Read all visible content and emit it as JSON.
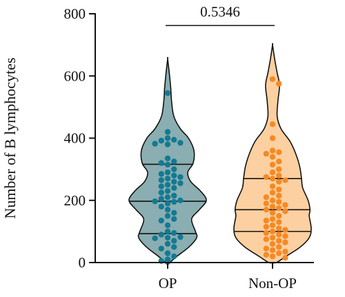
{
  "chart_data": {
    "type": "violin",
    "ylabel": "Number of B lymphocytes",
    "ylim": [
      0,
      800
    ],
    "yticks": [
      0,
      200,
      400,
      600,
      800
    ],
    "yticklabels": [
      "0",
      "200",
      "400",
      "600",
      "800"
    ],
    "categories": [
      "OP",
      "Non-OP"
    ],
    "annotation": {
      "text": "0.5346",
      "between": [
        "OP",
        "Non-OP"
      ]
    },
    "series": [
      {
        "category": "OP",
        "fill": "#8aaeb1",
        "point_color": "#137a93",
        "range": [
          0,
          655
        ],
        "quartiles": {
          "q1": 93,
          "median": 197,
          "q3": 316
        },
        "density": [
          [
            0,
            0.05
          ],
          [
            20,
            0.24
          ],
          [
            50,
            0.55
          ],
          [
            80,
            0.75
          ],
          [
            100,
            0.72
          ],
          [
            140,
            0.62
          ],
          [
            170,
            0.82
          ],
          [
            200,
            1.0
          ],
          [
            230,
            0.85
          ],
          [
            260,
            0.6
          ],
          [
            290,
            0.52
          ],
          [
            320,
            0.66
          ],
          [
            360,
            0.68
          ],
          [
            400,
            0.54
          ],
          [
            430,
            0.33
          ],
          [
            470,
            0.16
          ],
          [
            520,
            0.1
          ],
          [
            560,
            0.08
          ],
          [
            600,
            0.05
          ],
          [
            655,
            0
          ]
        ],
        "points": [
          545,
          420,
          400,
          395,
          392,
          385,
          382,
          380,
          335,
          325,
          320,
          315,
          300,
          290,
          285,
          280,
          275,
          270,
          265,
          260,
          255,
          250,
          245,
          240,
          230,
          225,
          215,
          210,
          205,
          200,
          197,
          195,
          190,
          180,
          170,
          160,
          150,
          140,
          135,
          120,
          100,
          95,
          90,
          82,
          80,
          78,
          70,
          60,
          50,
          45,
          30,
          20,
          10,
          5,
          3,
          2
        ]
      },
      {
        "category": "Non-OP",
        "fill": "#fdd0a1",
        "point_color": "#f58a25",
        "range": [
          0,
          700
        ],
        "quartiles": {
          "q1": 100,
          "median": 170,
          "q3": 270
        },
        "density": [
          [
            0,
            0.1
          ],
          [
            20,
            0.35
          ],
          [
            50,
            0.72
          ],
          [
            80,
            0.95
          ],
          [
            110,
            1.0
          ],
          [
            150,
            0.95
          ],
          [
            170,
            0.97
          ],
          [
            200,
            0.92
          ],
          [
            240,
            0.78
          ],
          [
            270,
            0.75
          ],
          [
            310,
            0.7
          ],
          [
            350,
            0.6
          ],
          [
            390,
            0.45
          ],
          [
            430,
            0.22
          ],
          [
            470,
            0.12
          ],
          [
            520,
            0.14
          ],
          [
            570,
            0.18
          ],
          [
            610,
            0.12
          ],
          [
            650,
            0.06
          ],
          [
            700,
            0
          ]
        ],
        "points": [
          590,
          575,
          445,
          400,
          360,
          355,
          350,
          340,
          325,
          315,
          300,
          290,
          280,
          275,
          270,
          265,
          260,
          245,
          235,
          225,
          215,
          210,
          200,
          195,
          190,
          185,
          180,
          175,
          170,
          165,
          160,
          150,
          140,
          135,
          130,
          120,
          115,
          110,
          105,
          100,
          95,
          90,
          85,
          80,
          75,
          70,
          65,
          60,
          50,
          45,
          40,
          35,
          30,
          25,
          20,
          15
        ]
      }
    ]
  }
}
